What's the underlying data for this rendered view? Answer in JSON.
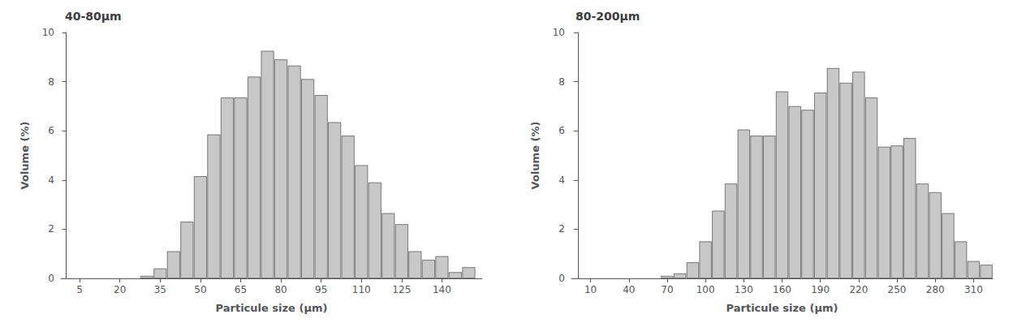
{
  "chart_data": [
    {
      "type": "bar",
      "title": "40-80μm",
      "xlabel": "Particule size (μm)",
      "ylabel": "Volume (%)",
      "x": [
        30,
        35,
        40,
        45,
        50,
        55,
        60,
        65,
        70,
        75,
        80,
        85,
        90,
        95,
        100,
        105,
        110,
        115,
        120,
        125,
        130,
        135,
        140,
        145,
        150
      ],
      "values": [
        0.1,
        0.4,
        1.1,
        2.3,
        4.15,
        5.85,
        7.35,
        7.35,
        8.2,
        9.25,
        8.9,
        8.65,
        8.1,
        7.45,
        6.35,
        5.8,
        4.6,
        3.9,
        2.65,
        2.2,
        1.1,
        0.75,
        0.9,
        0.25,
        0.45
      ],
      "xlim": [
        -2,
        155
      ],
      "xticks": [
        5,
        20,
        35,
        50,
        65,
        80,
        95,
        110,
        125,
        140
      ],
      "ylim": [
        0,
        10
      ],
      "yticks": [
        0,
        2,
        4,
        6,
        8,
        10
      ],
      "color": "#c8c8c8",
      "grid": false
    },
    {
      "type": "bar",
      "title": "80-200μm",
      "xlabel": "Particule size (μm)",
      "ylabel": "Volume (%)",
      "x": [
        70,
        80,
        90,
        100,
        110,
        120,
        130,
        140,
        150,
        160,
        170,
        180,
        190,
        200,
        210,
        220,
        230,
        240,
        250,
        260,
        270,
        280,
        290,
        300,
        310,
        320
      ],
      "values": [
        0.1,
        0.2,
        0.65,
        1.5,
        2.75,
        3.85,
        6.05,
        5.8,
        5.8,
        7.6,
        7.0,
        6.85,
        7.55,
        8.55,
        7.95,
        8.4,
        7.35,
        5.35,
        5.4,
        5.7,
        3.85,
        3.5,
        2.65,
        1.5,
        0.7,
        0.55
      ],
      "xlim": [
        -5,
        325
      ],
      "xticks": [
        10,
        40,
        70,
        100,
        130,
        160,
        190,
        220,
        250,
        280,
        310
      ],
      "ylim": [
        0,
        10
      ],
      "yticks": [
        0,
        2,
        4,
        6,
        8,
        10
      ],
      "color": "#c8c8c8",
      "grid": false
    }
  ]
}
